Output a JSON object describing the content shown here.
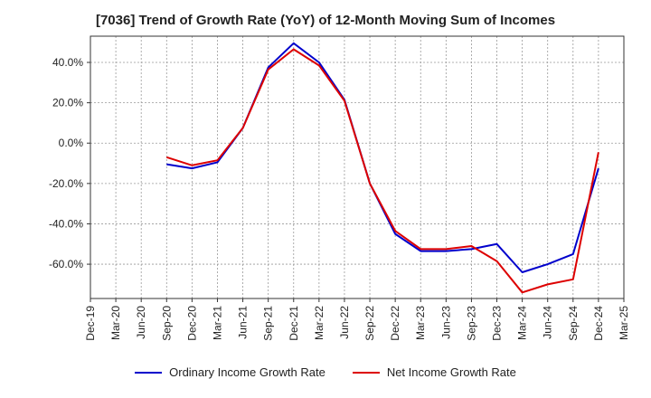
{
  "chart_data": {
    "type": "line",
    "title": "[7036]  Trend of Growth Rate (YoY) of 12-Month Moving Sum of Incomes",
    "xlabel": "",
    "ylabel": "",
    "y_unit": "%",
    "ylim": [
      -77,
      53
    ],
    "yticks": [
      40,
      20,
      0,
      -20,
      -40,
      -60
    ],
    "ytick_labels": [
      "40.0%",
      "20.0%",
      "0.0%",
      "-20.0%",
      "-40.0%",
      "-60.0%"
    ],
    "x_tick_labels": [
      "Dec-19",
      "Mar-20",
      "Jun-20",
      "Sep-20",
      "Dec-20",
      "Mar-21",
      "Jun-21",
      "Sep-21",
      "Dec-21",
      "Mar-22",
      "Jun-22",
      "Sep-22",
      "Dec-22",
      "Mar-23",
      "Jun-23",
      "Sep-23",
      "Dec-23",
      "Mar-24",
      "Jun-24",
      "Sep-24",
      "Dec-24",
      "Mar-25"
    ],
    "grid": true,
    "legend_position": "bottom",
    "series": [
      {
        "name": "Ordinary Income Growth Rate",
        "color": "#0000cc",
        "points": [
          {
            "x": "Sep-20",
            "y": -10.5
          },
          {
            "x": "Dec-20",
            "y": -12.5
          },
          {
            "x": "Mar-21",
            "y": -9.5
          },
          {
            "x": "Jun-21",
            "y": 7.5
          },
          {
            "x": "Sep-21",
            "y": 37.5
          },
          {
            "x": "Dec-21",
            "y": 49.5
          },
          {
            "x": "Mar-22",
            "y": 40.0
          },
          {
            "x": "Jun-22",
            "y": 21.5
          },
          {
            "x": "Sep-22",
            "y": -20.0
          },
          {
            "x": "Dec-22",
            "y": -45.0
          },
          {
            "x": "Mar-23",
            "y": -53.5
          },
          {
            "x": "Jun-23",
            "y": -53.5
          },
          {
            "x": "Sep-23",
            "y": -52.5
          },
          {
            "x": "Dec-23",
            "y": -50.0
          },
          {
            "x": "Mar-24",
            "y": -64.0
          },
          {
            "x": "Jun-24",
            "y": -60.0
          },
          {
            "x": "Sep-24",
            "y": -55.0
          },
          {
            "x": "Dec-24",
            "y": -12.5
          }
        ]
      },
      {
        "name": "Net Income Growth Rate",
        "color": "#dd0000",
        "points": [
          {
            "x": "Sep-20",
            "y": -7.0
          },
          {
            "x": "Dec-20",
            "y": -11.0
          },
          {
            "x": "Mar-21",
            "y": -8.5
          },
          {
            "x": "Jun-21",
            "y": 7.5
          },
          {
            "x": "Sep-21",
            "y": 36.5
          },
          {
            "x": "Dec-21",
            "y": 46.5
          },
          {
            "x": "Mar-22",
            "y": 38.5
          },
          {
            "x": "Jun-22",
            "y": 21.0
          },
          {
            "x": "Sep-22",
            "y": -20.0
          },
          {
            "x": "Dec-22",
            "y": -43.5
          },
          {
            "x": "Mar-23",
            "y": -52.5
          },
          {
            "x": "Jun-23",
            "y": -52.5
          },
          {
            "x": "Sep-23",
            "y": -51.0
          },
          {
            "x": "Dec-23",
            "y": -58.5
          },
          {
            "x": "Mar-24",
            "y": -74.0
          },
          {
            "x": "Jun-24",
            "y": -70.0
          },
          {
            "x": "Sep-24",
            "y": -67.5
          },
          {
            "x": "Dec-24",
            "y": -4.5
          }
        ]
      }
    ]
  }
}
